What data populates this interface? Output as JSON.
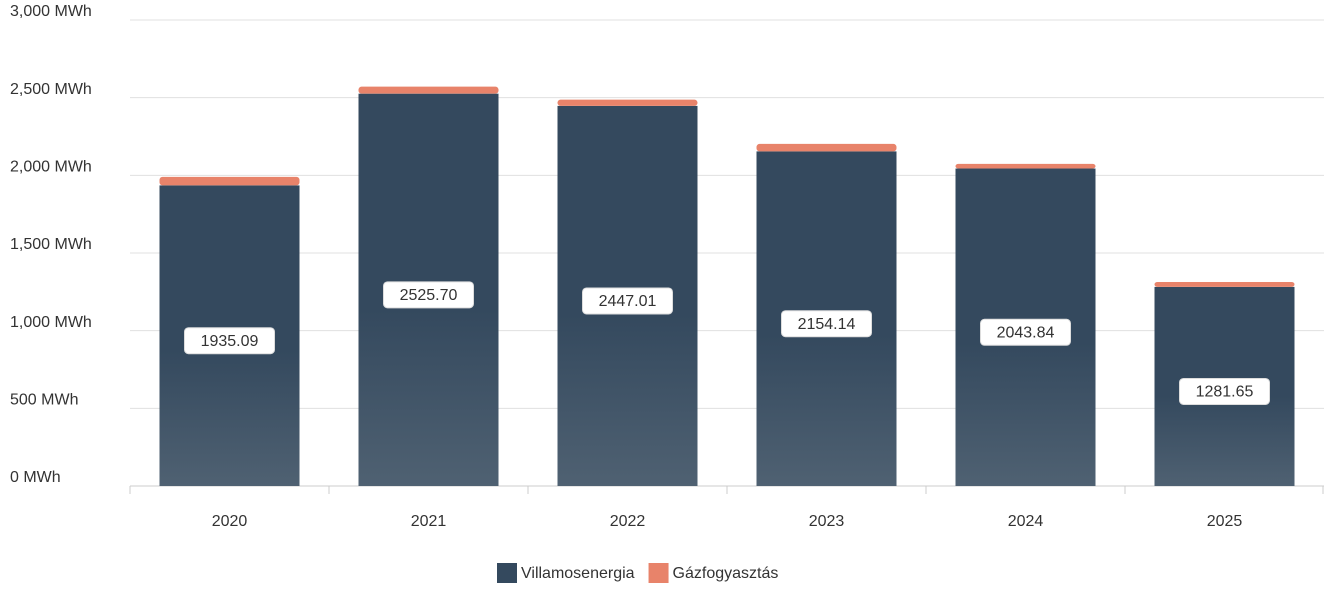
{
  "chart_data": {
    "type": "stacked_bar",
    "categories": [
      "2020",
      "2021",
      "2022",
      "2023",
      "2024",
      "2025"
    ],
    "series": [
      {
        "name": "Villamosenergia",
        "color": "#34495e",
        "values": [
          1935.09,
          2525.7,
          2447.01,
          2154.14,
          2043.84,
          1281.65
        ],
        "value_labels": [
          "1935.09",
          "2525.70",
          "2447.01",
          "2154.14",
          "2043.84",
          "1281.65"
        ]
      },
      {
        "name": "Gázfogyasztás",
        "color": "#e8836a",
        "values": [
          55,
          45,
          40,
          48,
          30,
          32
        ]
      }
    ],
    "ylim": [
      0,
      3000
    ],
    "yticks": [
      {
        "value": 0,
        "label": "0 MWh"
      },
      {
        "value": 500,
        "label": "500 MWh"
      },
      {
        "value": 1000,
        "label": "1,000 MWh"
      },
      {
        "value": 1500,
        "label": "1,500 MWh"
      },
      {
        "value": 2000,
        "label": "2,000 MWh"
      },
      {
        "value": 2500,
        "label": "2,500 MWh"
      },
      {
        "value": 3000,
        "label": "3,000 MWh"
      }
    ],
    "grid": true,
    "legend": "bottom"
  }
}
